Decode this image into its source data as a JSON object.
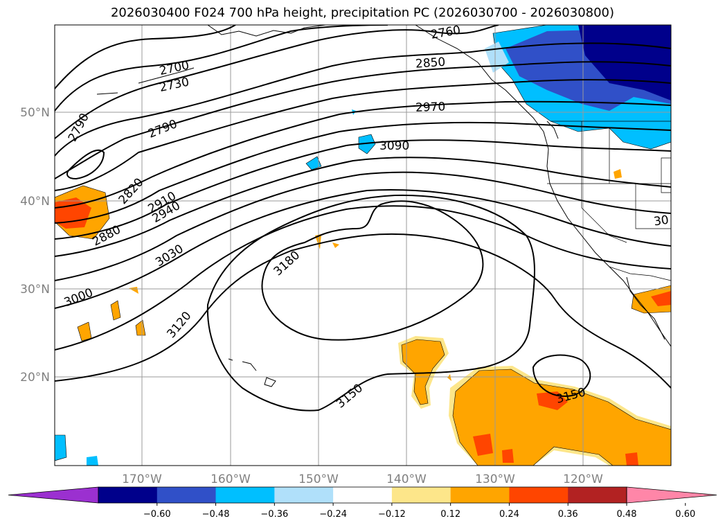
{
  "title": "2026030400 F024 700 hPa height, precipitation PC (2026030700 - 2026030800)",
  "map": {
    "projection": "PlateCarree",
    "lon_range": [
      -180,
      -110
    ],
    "lat_range": [
      10,
      60
    ],
    "lat_gridlines": [
      {
        "lat": 20,
        "label": "20°N"
      },
      {
        "lat": 30,
        "label": "30°N"
      },
      {
        "lat": 40,
        "label": "40°N"
      },
      {
        "lat": 50,
        "label": "50°N"
      }
    ],
    "lon_gridlines": [
      {
        "lon": -170,
        "label": "170°W"
      },
      {
        "lon": -160,
        "label": "160°W"
      },
      {
        "lon": -150,
        "label": "150°W"
      },
      {
        "lon": -140,
        "label": "140°W"
      },
      {
        "lon": -130,
        "label": "130°W"
      },
      {
        "lon": -120,
        "label": "120°W"
      }
    ],
    "contour_labels": [
      "2700",
      "2730",
      "2760",
      "2790",
      "2790",
      "2820",
      "2850",
      "2880",
      "2910",
      "2940",
      "2970",
      "3000",
      "3030",
      "3090",
      "3120",
      "3150",
      "3150",
      "3180",
      "30"
    ]
  },
  "colorbar": {
    "ticks": [
      "−0.60",
      "−0.48",
      "−0.36",
      "−0.24",
      "−0.12",
      "0.12",
      "0.24",
      "0.36",
      "0.48",
      "0.60"
    ],
    "colors": [
      "#9b30d0",
      "#00008b",
      "#3050c8",
      "#00bfff",
      "#b0e0fa",
      "#ffffff",
      "#fde68a",
      "#ffa500",
      "#ff4500",
      "#b22222",
      "#ff86a8"
    ]
  }
}
